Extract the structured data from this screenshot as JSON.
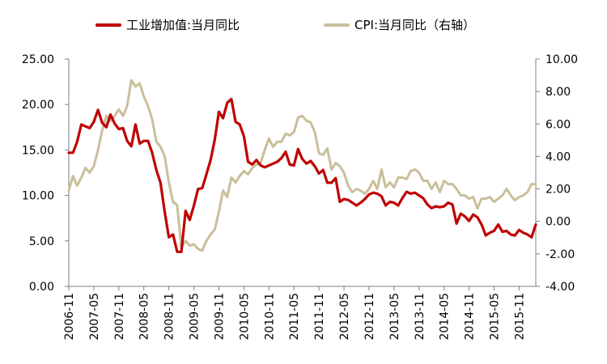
{
  "chart_data": {
    "type": "line",
    "title": "",
    "xlabel": "",
    "ylabel": "",
    "legend_position": "top",
    "grid": false,
    "colors": {
      "industrial": "#c00000",
      "cpi": "#c9bf9a"
    },
    "left_axis": {
      "ylim": [
        0,
        25
      ],
      "ticks": [
        "0.00",
        "5.00",
        "10.00",
        "15.00",
        "20.00",
        "25.00"
      ]
    },
    "right_axis": {
      "ylim": [
        -4,
        10
      ],
      "ticks": [
        "-4.00",
        "-2.00",
        "0.00",
        "2.00",
        "4.00",
        "6.00",
        "8.00",
        "10.00"
      ]
    },
    "x_range": [
      "2006-11",
      "2016-03"
    ],
    "x_tick_labels": [
      "2006-11",
      "2007-05",
      "2007-11",
      "2008-05",
      "2008-11",
      "2009-05",
      "2009-11",
      "2010-05",
      "2010-11",
      "2011-05",
      "2011-11",
      "2012-05",
      "2012-11",
      "2013-05",
      "2013-11",
      "2014-05",
      "2014-11",
      "2015-05",
      "2015-11"
    ],
    "series": [
      {
        "name": "工业增加值:当月同比",
        "axis": "left",
        "color": "#c00000",
        "points": [
          [
            "2006-11",
            14.7
          ],
          [
            "2006-12",
            14.7
          ],
          [
            "2007-01",
            15.9
          ],
          [
            "2007-02",
            17.8
          ],
          [
            "2007-03",
            17.6
          ],
          [
            "2007-04",
            17.4
          ],
          [
            "2007-05",
            18.1
          ],
          [
            "2007-06",
            19.4
          ],
          [
            "2007-07",
            18.0
          ],
          [
            "2007-08",
            17.5
          ],
          [
            "2007-09",
            18.9
          ],
          [
            "2007-10",
            17.9
          ],
          [
            "2007-11",
            17.3
          ],
          [
            "2007-12",
            17.4
          ],
          [
            "2008-01",
            16.0
          ],
          [
            "2008-02",
            15.4
          ],
          [
            "2008-03",
            17.8
          ],
          [
            "2008-04",
            15.7
          ],
          [
            "2008-05",
            16.0
          ],
          [
            "2008-06",
            16.0
          ],
          [
            "2008-07",
            14.7
          ],
          [
            "2008-08",
            12.8
          ],
          [
            "2008-09",
            11.4
          ],
          [
            "2008-10",
            8.2
          ],
          [
            "2008-11",
            5.4
          ],
          [
            "2008-12",
            5.7
          ],
          [
            "2009-01",
            3.8
          ],
          [
            "2009-02",
            3.8
          ],
          [
            "2009-03",
            8.3
          ],
          [
            "2009-04",
            7.3
          ],
          [
            "2009-05",
            8.9
          ],
          [
            "2009-06",
            10.7
          ],
          [
            "2009-07",
            10.8
          ],
          [
            "2009-08",
            12.3
          ],
          [
            "2009-09",
            13.9
          ],
          [
            "2009-10",
            16.1
          ],
          [
            "2009-11",
            19.2
          ],
          [
            "2009-12",
            18.5
          ],
          [
            "2010-01",
            20.2
          ],
          [
            "2010-02",
            20.6
          ],
          [
            "2010-03",
            18.1
          ],
          [
            "2010-04",
            17.8
          ],
          [
            "2010-05",
            16.5
          ],
          [
            "2010-06",
            13.7
          ],
          [
            "2010-07",
            13.4
          ],
          [
            "2010-08",
            13.9
          ],
          [
            "2010-09",
            13.3
          ],
          [
            "2010-10",
            13.1
          ],
          [
            "2010-11",
            13.3
          ],
          [
            "2010-12",
            13.5
          ],
          [
            "2011-01",
            13.7
          ],
          [
            "2011-02",
            14.1
          ],
          [
            "2011-03",
            14.8
          ],
          [
            "2011-04",
            13.4
          ],
          [
            "2011-05",
            13.3
          ],
          [
            "2011-06",
            15.1
          ],
          [
            "2011-07",
            14.0
          ],
          [
            "2011-08",
            13.5
          ],
          [
            "2011-09",
            13.8
          ],
          [
            "2011-10",
            13.2
          ],
          [
            "2011-11",
            12.4
          ],
          [
            "2011-12",
            12.8
          ],
          [
            "2012-01",
            11.4
          ],
          [
            "2012-02",
            11.4
          ],
          [
            "2012-03",
            11.9
          ],
          [
            "2012-04",
            9.3
          ],
          [
            "2012-05",
            9.6
          ],
          [
            "2012-06",
            9.5
          ],
          [
            "2012-07",
            9.2
          ],
          [
            "2012-08",
            8.9
          ],
          [
            "2012-09",
            9.2
          ],
          [
            "2012-10",
            9.6
          ],
          [
            "2012-11",
            10.1
          ],
          [
            "2012-12",
            10.3
          ],
          [
            "2013-01",
            10.2
          ],
          [
            "2013-02",
            9.9
          ],
          [
            "2013-03",
            8.9
          ],
          [
            "2013-04",
            9.3
          ],
          [
            "2013-05",
            9.2
          ],
          [
            "2013-06",
            8.9
          ],
          [
            "2013-07",
            9.7
          ],
          [
            "2013-08",
            10.4
          ],
          [
            "2013-09",
            10.2
          ],
          [
            "2013-10",
            10.3
          ],
          [
            "2013-11",
            10.0
          ],
          [
            "2013-12",
            9.7
          ],
          [
            "2014-01",
            9.0
          ],
          [
            "2014-02",
            8.6
          ],
          [
            "2014-03",
            8.8
          ],
          [
            "2014-04",
            8.7
          ],
          [
            "2014-05",
            8.8
          ],
          [
            "2014-06",
            9.2
          ],
          [
            "2014-07",
            9.0
          ],
          [
            "2014-08",
            6.9
          ],
          [
            "2014-09",
            8.0
          ],
          [
            "2014-10",
            7.7
          ],
          [
            "2014-11",
            7.2
          ],
          [
            "2014-12",
            7.9
          ],
          [
            "2015-01",
            7.6
          ],
          [
            "2015-02",
            6.8
          ],
          [
            "2015-03",
            5.6
          ],
          [
            "2015-04",
            5.9
          ],
          [
            "2015-05",
            6.1
          ],
          [
            "2015-06",
            6.8
          ],
          [
            "2015-07",
            6.0
          ],
          [
            "2015-08",
            6.1
          ],
          [
            "2015-09",
            5.7
          ],
          [
            "2015-10",
            5.6
          ],
          [
            "2015-11",
            6.2
          ],
          [
            "2015-12",
            5.9
          ],
          [
            "2016-01",
            5.7
          ],
          [
            "2016-02",
            5.4
          ],
          [
            "2016-03",
            6.8
          ]
        ]
      },
      {
        "name": "CPI:当月同比（右轴）",
        "axis": "right",
        "color": "#c9bf9a",
        "points": [
          [
            "2006-11",
            1.9
          ],
          [
            "2006-12",
            2.8
          ],
          [
            "2007-01",
            2.2
          ],
          [
            "2007-02",
            2.7
          ],
          [
            "2007-03",
            3.3
          ],
          [
            "2007-04",
            3.0
          ],
          [
            "2007-05",
            3.4
          ],
          [
            "2007-06",
            4.4
          ],
          [
            "2007-07",
            5.6
          ],
          [
            "2007-08",
            6.5
          ],
          [
            "2007-09",
            6.2
          ],
          [
            "2007-10",
            6.5
          ],
          [
            "2007-11",
            6.9
          ],
          [
            "2007-12",
            6.5
          ],
          [
            "2008-01",
            7.1
          ],
          [
            "2008-02",
            8.7
          ],
          [
            "2008-03",
            8.3
          ],
          [
            "2008-04",
            8.5
          ],
          [
            "2008-05",
            7.7
          ],
          [
            "2008-06",
            7.1
          ],
          [
            "2008-07",
            6.3
          ],
          [
            "2008-08",
            4.9
          ],
          [
            "2008-09",
            4.6
          ],
          [
            "2008-10",
            4.0
          ],
          [
            "2008-11",
            2.4
          ],
          [
            "2008-12",
            1.2
          ],
          [
            "2009-01",
            1.0
          ],
          [
            "2009-02",
            -1.6
          ],
          [
            "2009-03",
            -1.2
          ],
          [
            "2009-04",
            -1.5
          ],
          [
            "2009-05",
            -1.4
          ],
          [
            "2009-06",
            -1.7
          ],
          [
            "2009-07",
            -1.8
          ],
          [
            "2009-08",
            -1.2
          ],
          [
            "2009-09",
            -0.8
          ],
          [
            "2009-10",
            -0.5
          ],
          [
            "2009-11",
            0.6
          ],
          [
            "2009-12",
            1.9
          ],
          [
            "2010-01",
            1.5
          ],
          [
            "2010-02",
            2.7
          ],
          [
            "2010-03",
            2.4
          ],
          [
            "2010-04",
            2.8
          ],
          [
            "2010-05",
            3.1
          ],
          [
            "2010-06",
            2.9
          ],
          [
            "2010-07",
            3.3
          ],
          [
            "2010-08",
            3.5
          ],
          [
            "2010-09",
            3.6
          ],
          [
            "2010-10",
            4.4
          ],
          [
            "2010-11",
            5.1
          ],
          [
            "2010-12",
            4.6
          ],
          [
            "2011-01",
            4.9
          ],
          [
            "2011-02",
            4.9
          ],
          [
            "2011-03",
            5.4
          ],
          [
            "2011-04",
            5.3
          ],
          [
            "2011-05",
            5.5
          ],
          [
            "2011-06",
            6.4
          ],
          [
            "2011-07",
            6.5
          ],
          [
            "2011-08",
            6.2
          ],
          [
            "2011-09",
            6.1
          ],
          [
            "2011-10",
            5.5
          ],
          [
            "2011-11",
            4.2
          ],
          [
            "2011-12",
            4.1
          ],
          [
            "2012-01",
            4.5
          ],
          [
            "2012-02",
            3.2
          ],
          [
            "2012-03",
            3.6
          ],
          [
            "2012-04",
            3.4
          ],
          [
            "2012-05",
            3.0
          ],
          [
            "2012-06",
            2.2
          ],
          [
            "2012-07",
            1.8
          ],
          [
            "2012-08",
            2.0
          ],
          [
            "2012-09",
            1.9
          ],
          [
            "2012-10",
            1.7
          ],
          [
            "2012-11",
            2.0
          ],
          [
            "2012-12",
            2.5
          ],
          [
            "2013-01",
            2.0
          ],
          [
            "2013-02",
            3.2
          ],
          [
            "2013-03",
            2.1
          ],
          [
            "2013-04",
            2.4
          ],
          [
            "2013-05",
            2.1
          ],
          [
            "2013-06",
            2.7
          ],
          [
            "2013-07",
            2.7
          ],
          [
            "2013-08",
            2.6
          ],
          [
            "2013-09",
            3.1
          ],
          [
            "2013-10",
            3.2
          ],
          [
            "2013-11",
            3.0
          ],
          [
            "2013-12",
            2.5
          ],
          [
            "2014-01",
            2.5
          ],
          [
            "2014-02",
            2.0
          ],
          [
            "2014-03",
            2.4
          ],
          [
            "2014-04",
            1.8
          ],
          [
            "2014-05",
            2.5
          ],
          [
            "2014-06",
            2.3
          ],
          [
            "2014-07",
            2.3
          ],
          [
            "2014-08",
            2.0
          ],
          [
            "2014-09",
            1.6
          ],
          [
            "2014-10",
            1.6
          ],
          [
            "2014-11",
            1.4
          ],
          [
            "2014-12",
            1.5
          ],
          [
            "2015-01",
            0.8
          ],
          [
            "2015-02",
            1.4
          ],
          [
            "2015-03",
            1.4
          ],
          [
            "2015-04",
            1.5
          ],
          [
            "2015-05",
            1.2
          ],
          [
            "2015-06",
            1.4
          ],
          [
            "2015-07",
            1.6
          ],
          [
            "2015-08",
            2.0
          ],
          [
            "2015-09",
            1.6
          ],
          [
            "2015-10",
            1.3
          ],
          [
            "2015-11",
            1.5
          ],
          [
            "2015-12",
            1.6
          ],
          [
            "2016-01",
            1.8
          ],
          [
            "2016-02",
            2.3
          ],
          [
            "2016-03",
            2.3
          ]
        ]
      }
    ]
  }
}
